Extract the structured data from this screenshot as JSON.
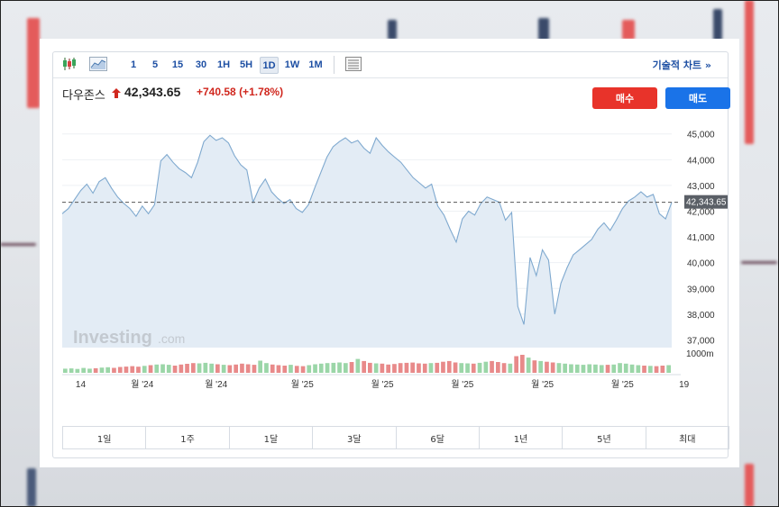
{
  "toolbar": {
    "timeframes": [
      "1",
      "5",
      "15",
      "30",
      "1H",
      "5H",
      "1D",
      "1W",
      "1M"
    ],
    "active_timeframe": "1D",
    "icons": [
      "candlestick-icon",
      "area-chart-icon",
      "table-icon"
    ],
    "tech_chart_label": "기술적 차트 »"
  },
  "quote": {
    "name": "다우존스",
    "price": "42,343.65",
    "change": "+740.58",
    "change_pct": "(+1.78%)",
    "direction": "up",
    "up_color": "#d0271e"
  },
  "actions": {
    "buy_label": "매수",
    "sell_label": "매도",
    "buy_color": "#e8332a",
    "sell_color": "#1a73e8"
  },
  "watermark": {
    "brand": "Investing",
    "suffix": ".com"
  },
  "range_tabs": [
    "1일",
    "1주",
    "1달",
    "3달",
    "6달",
    "1년",
    "5년",
    "최대"
  ],
  "chart_data": {
    "type": "area",
    "y_ticks": [
      "45,000",
      "44,000",
      "43,000",
      "42,000",
      "41,000",
      "40,000",
      "39,000",
      "38,000",
      "37,000"
    ],
    "y_tick_values": [
      45000,
      44000,
      43000,
      42000,
      41000,
      40000,
      39000,
      38000,
      37000
    ],
    "ylim": [
      36700,
      45900
    ],
    "x_ticks": [
      "14",
      "월 '24",
      "월 '24",
      "월 '25",
      "월 '25",
      "월 '25",
      "월 '25",
      "월 '25",
      "19"
    ],
    "x_tick_index": [
      3,
      13,
      25,
      39,
      52,
      65,
      78,
      91,
      101
    ],
    "volume_label": "1000m",
    "current_label": "42,343.65",
    "current_value": 42343.65,
    "series": [
      {
        "values": [
          41900,
          42100,
          42450,
          42800,
          43050,
          42700,
          43150,
          43300,
          42900,
          42550,
          42300,
          42100,
          41800,
          42200,
          41900,
          42250,
          43950,
          44200,
          43900,
          43650,
          43500,
          43300,
          43900,
          44700,
          44950,
          44750,
          44850,
          44650,
          44150,
          43800,
          43600,
          42350,
          42900,
          43250,
          42750,
          42500,
          42300,
          42450,
          42100,
          41950,
          42250,
          42900,
          43500,
          44100,
          44500,
          44700,
          44850,
          44650,
          44750,
          44450,
          44250,
          44850,
          44550,
          44300,
          44100,
          43900,
          43600,
          43300,
          43100,
          42900,
          43050,
          42200,
          41850,
          41300,
          40800,
          41700,
          42000,
          41850,
          42300,
          42550,
          42450,
          42350,
          41650,
          41950,
          38300,
          37600,
          40200,
          39500,
          40500,
          40100,
          38000,
          39200,
          39800,
          40300,
          40500,
          40700,
          40900,
          41300,
          41550,
          41250,
          41650,
          42100,
          42400,
          42550,
          42750,
          42550,
          42650,
          41900,
          41700,
          42343.65
        ]
      }
    ],
    "volume": [
      30,
      32,
      28,
      35,
      30,
      33,
      38,
      40,
      36,
      42,
      45,
      48,
      44,
      50,
      55,
      60,
      62,
      58,
      52,
      60,
      65,
      70,
      68,
      72,
      66,
      62,
      58,
      55,
      60,
      66,
      62,
      58,
      88,
      70,
      60,
      55,
      52,
      58,
      50,
      48,
      55,
      62,
      66,
      70,
      72,
      75,
      70,
      78,
      100,
      85,
      72,
      68,
      66,
      60,
      64,
      70,
      72,
      74,
      68,
      66,
      70,
      72,
      80,
      85,
      75,
      70,
      68,
      66,
      72,
      80,
      85,
      78,
      70,
      66,
      120,
      130,
      110,
      90,
      85,
      80,
      75,
      70,
      66,
      62,
      60,
      58,
      62,
      60,
      56,
      58,
      60,
      70,
      66,
      60,
      55,
      52,
      50,
      48,
      52,
      55
    ]
  }
}
